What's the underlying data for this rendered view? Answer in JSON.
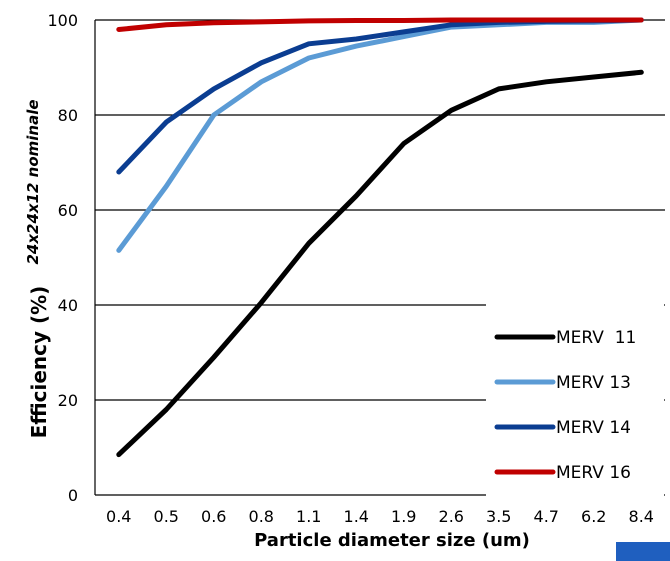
{
  "chart_data": {
    "type": "line",
    "title": "",
    "ylabel": "Efficiency (%)",
    "xlabel": "Particle diameter size (um)",
    "side_label": "24x24x12 nominale",
    "categories": [
      "0.4",
      "0.5",
      "0.6",
      "0.8",
      "1.1",
      "1.4",
      "1.9",
      "2.6",
      "3.5",
      "4.7",
      "6.2",
      "8.4"
    ],
    "ylim": [
      0,
      100
    ],
    "yticks": [
      0,
      20,
      40,
      60,
      80,
      100
    ],
    "grid": true,
    "legend_position": "bottom-right",
    "series": [
      {
        "name": "MERV  11",
        "color": "#000000",
        "values": [
          8.5,
          18,
          29,
          40.5,
          53,
          63,
          74,
          81,
          85.5,
          87,
          88,
          89
        ]
      },
      {
        "name": "MERV 13",
        "color": "#5b9bd5",
        "values": [
          51.5,
          65,
          80,
          87,
          92,
          94.5,
          96.5,
          98.5,
          99,
          99.5,
          99.5,
          100
        ]
      },
      {
        "name": "MERV 14",
        "color": "#0b3d91",
        "values": [
          68,
          78.5,
          85.5,
          91,
          95,
          96,
          97.5,
          99,
          99.5,
          99.7,
          99.8,
          100
        ]
      },
      {
        "name": "MERV 16",
        "color": "#c00000",
        "values": [
          98,
          99,
          99.4,
          99.6,
          99.8,
          99.9,
          99.9,
          100,
          100,
          100,
          100,
          100
        ]
      }
    ],
    "corner_swatch_color": "#1f5fbf"
  }
}
